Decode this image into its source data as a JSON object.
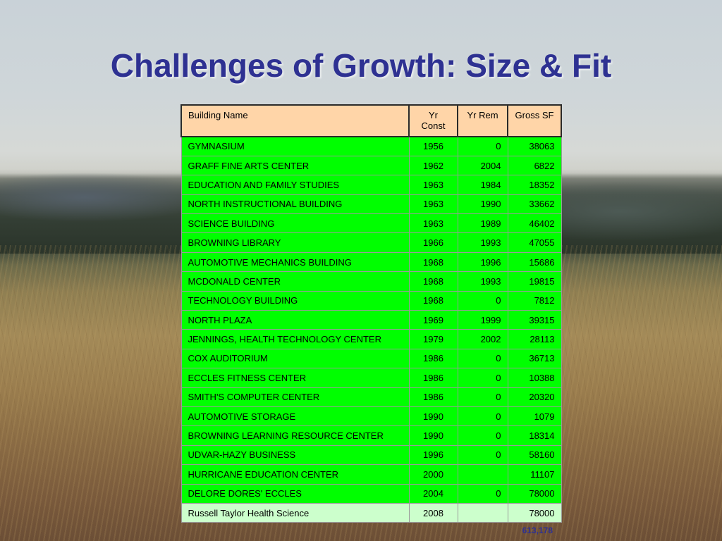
{
  "title": "Challenges of Growth: Size & Fit",
  "table": {
    "headers": {
      "name": "Building Name",
      "yr_const": "Yr Const",
      "yr_rem": "Yr Rem",
      "gross_sf": "Gross SF"
    },
    "rows": [
      {
        "name": "GYMNASIUM",
        "yr_const": "1956",
        "yr_rem": "0",
        "gross_sf": "38063"
      },
      {
        "name": "GRAFF FINE ARTS CENTER",
        "yr_const": "1962",
        "yr_rem": "2004",
        "gross_sf": "6822"
      },
      {
        "name": "EDUCATION AND FAMILY STUDIES",
        "yr_const": "1963",
        "yr_rem": "1984",
        "gross_sf": "18352"
      },
      {
        "name": "NORTH INSTRUCTIONAL BUILDING",
        "yr_const": "1963",
        "yr_rem": "1990",
        "gross_sf": "33662"
      },
      {
        "name": "SCIENCE BUILDING",
        "yr_const": "1963",
        "yr_rem": "1989",
        "gross_sf": "46402"
      },
      {
        "name": "BROWNING LIBRARY",
        "yr_const": "1966",
        "yr_rem": "1993",
        "gross_sf": "47055"
      },
      {
        "name": "AUTOMOTIVE MECHANICS BUILDING",
        "yr_const": "1968",
        "yr_rem": "1996",
        "gross_sf": "15686"
      },
      {
        "name": "MCDONALD CENTER",
        "yr_const": "1968",
        "yr_rem": "1993",
        "gross_sf": "19815"
      },
      {
        "name": "TECHNOLOGY BUILDING",
        "yr_const": "1968",
        "yr_rem": "0",
        "gross_sf": "7812"
      },
      {
        "name": "NORTH PLAZA",
        "yr_const": "1969",
        "yr_rem": "1999",
        "gross_sf": "39315"
      },
      {
        "name": "JENNINGS, HEALTH TECHNOLOGY CENTER",
        "yr_const": "1979",
        "yr_rem": "2002",
        "gross_sf": "28113"
      },
      {
        "name": "COX AUDITORIUM",
        "yr_const": "1986",
        "yr_rem": "0",
        "gross_sf": "36713"
      },
      {
        "name": "ECCLES FITNESS CENTER",
        "yr_const": "1986",
        "yr_rem": "0",
        "gross_sf": "10388"
      },
      {
        "name": "SMITH'S COMPUTER CENTER",
        "yr_const": "1986",
        "yr_rem": "0",
        "gross_sf": "20320"
      },
      {
        "name": "AUTOMOTIVE STORAGE",
        "yr_const": "1990",
        "yr_rem": "0",
        "gross_sf": "1079"
      },
      {
        "name": "BROWNING LEARNING RESOURCE CENTER",
        "yr_const": "1990",
        "yr_rem": "0",
        "gross_sf": "18314"
      },
      {
        "name": "UDVAR-HAZY BUSINESS",
        "yr_const": "1996",
        "yr_rem": "0",
        "gross_sf": "58160"
      },
      {
        "name": "HURRICANE EDUCATION CENTER",
        "yr_const": "2000",
        "yr_rem": "",
        "gross_sf": "11107"
      },
      {
        "name": "DELORE DORES' ECCLES",
        "yr_const": "2004",
        "yr_rem": "0",
        "gross_sf": "78000"
      },
      {
        "name": "Russell Taylor Health Science",
        "yr_const": "2008",
        "yr_rem": "",
        "gross_sf": "78000",
        "highlight": "light"
      }
    ],
    "total": "613,178"
  },
  "colors": {
    "title": "#2e3192",
    "header_bg": "#ffd5a8",
    "row_bg": "#00ff00",
    "row_light_bg": "#ccffcc"
  }
}
